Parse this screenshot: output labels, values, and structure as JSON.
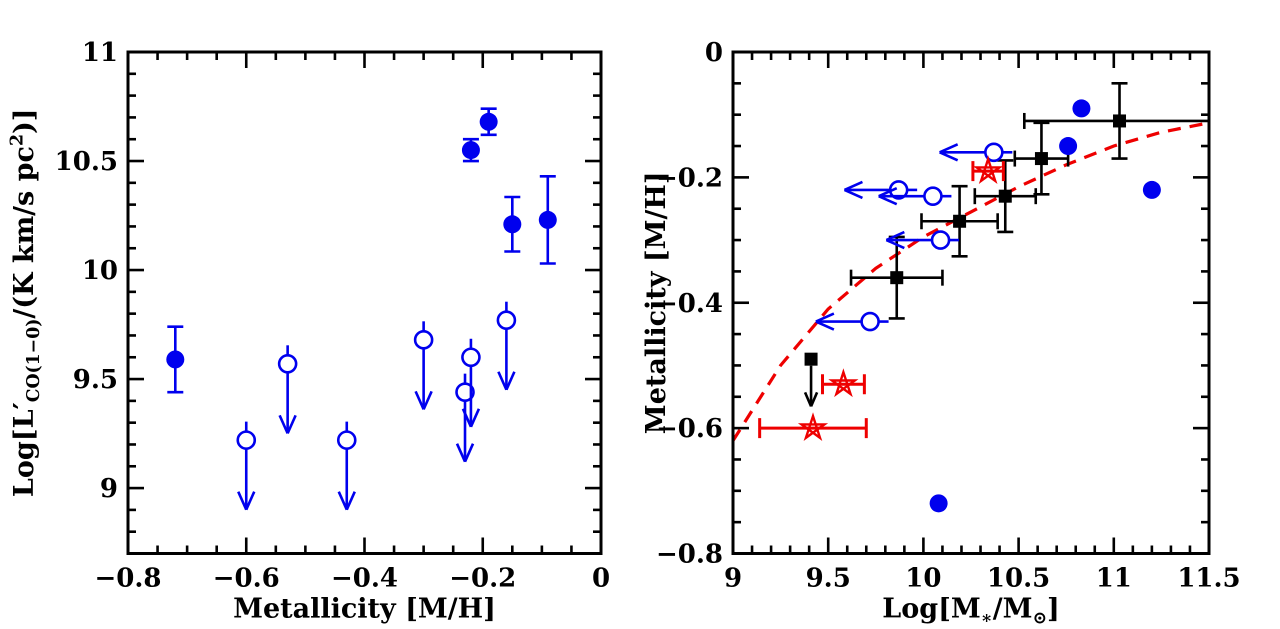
{
  "figure": {
    "background": "#ffffff",
    "colors": {
      "blue": "#0000ee",
      "red": "#ee0000",
      "black": "#000000"
    }
  },
  "chart_data": [
    {
      "id": "co-luminosity-vs-metallicity",
      "type": "scatter",
      "title": "",
      "xlabel": "Metallicity [M/H]",
      "ylabel_parts": [
        {
          "t": "Log[L′",
          "s": "n"
        },
        {
          "t": "CO(1−0)",
          "s": "sub"
        },
        {
          "t": "/(K km/s pc",
          "s": "n"
        },
        {
          "t": "2",
          "s": "sup"
        },
        {
          "t": ")]",
          "s": "n"
        }
      ],
      "xlim": [
        -0.8,
        0
      ],
      "ylim": [
        8.7,
        11
      ],
      "grid": false,
      "legend": null,
      "x_ticks": [
        {
          "v": -0.8,
          "label": "−0.8"
        },
        {
          "v": -0.6,
          "label": "−0.6"
        },
        {
          "v": -0.4,
          "label": "−0.4"
        },
        {
          "v": -0.2,
          "label": "−0.2"
        },
        {
          "v": 0,
          "label": "0"
        }
      ],
      "x_minor_step": 0.05,
      "y_ticks": [
        {
          "v": 9,
          "label": "9"
        },
        {
          "v": 9.5,
          "label": "9.5"
        },
        {
          "v": 10,
          "label": "10"
        },
        {
          "v": 10.5,
          "label": "10.5"
        },
        {
          "v": 11,
          "label": "11"
        }
      ],
      "y_minor_step": 0.1,
      "series": [
        {
          "name": "co-detections",
          "marker": "circle-filled",
          "color": "blue",
          "points": [
            {
              "x": -0.72,
              "y": 9.59,
              "yerr": 0.15
            },
            {
              "x": -0.22,
              "y": 10.55,
              "yerr": 0.05
            },
            {
              "x": -0.19,
              "y": 10.68,
              "yerr": 0.06
            },
            {
              "x": -0.15,
              "y": 10.21,
              "yerr": 0.125
            },
            {
              "x": -0.09,
              "y": 10.23,
              "yerr": 0.2
            }
          ]
        },
        {
          "name": "co-upper-limits",
          "marker": "circle-open-down-arrow",
          "color": "blue",
          "arrow_len": 0.28,
          "points": [
            {
              "x": -0.6,
              "y": 9.22
            },
            {
              "x": -0.53,
              "y": 9.57
            },
            {
              "x": -0.43,
              "y": 9.22
            },
            {
              "x": -0.3,
              "y": 9.68
            },
            {
              "x": -0.23,
              "y": 9.44
            },
            {
              "x": -0.22,
              "y": 9.6
            },
            {
              "x": -0.16,
              "y": 9.77
            }
          ]
        }
      ]
    },
    {
      "id": "mass-metallicity",
      "type": "scatter",
      "title": "",
      "xlabel_parts": [
        {
          "t": "Log[M",
          "s": "n"
        },
        {
          "t": "∗",
          "s": "sub"
        },
        {
          "t": "/M",
          "s": "n"
        },
        {
          "t": "⊙",
          "s": "sub"
        },
        {
          "t": "]",
          "s": "n"
        }
      ],
      "ylabel": "Metallicity [M/H]",
      "xlim": [
        9,
        11.5
      ],
      "ylim": [
        -0.8,
        0
      ],
      "grid": false,
      "legend": null,
      "x_ticks": [
        {
          "v": 9,
          "label": "9"
        },
        {
          "v": 9.5,
          "label": "9.5"
        },
        {
          "v": 10,
          "label": "10"
        },
        {
          "v": 10.5,
          "label": "10.5"
        },
        {
          "v": 11,
          "label": "11"
        },
        {
          "v": 11.5,
          "label": "11.5"
        }
      ],
      "x_minor_step": 0.1,
      "y_ticks": [
        {
          "v": 0,
          "label": "0"
        },
        {
          "v": -0.2,
          "label": "−0.2"
        },
        {
          "v": -0.4,
          "label": "−0.4"
        },
        {
          "v": -0.6,
          "label": "−0.6"
        },
        {
          "v": -0.8,
          "label": "−0.8"
        }
      ],
      "y_minor_step": 0.05,
      "series": [
        {
          "name": "model-curve",
          "marker": "dashed-line",
          "color": "red",
          "x": [
            9.0,
            9.25,
            9.5,
            9.75,
            10.0,
            10.25,
            10.5,
            10.75,
            11.0,
            11.25,
            11.5
          ],
          "y": [
            -0.62,
            -0.5,
            -0.41,
            -0.345,
            -0.295,
            -0.255,
            -0.215,
            -0.18,
            -0.15,
            -0.128,
            -0.113
          ]
        },
        {
          "name": "binned-squares",
          "marker": "square-filled",
          "color": "black",
          "points": [
            {
              "x": 9.86,
              "y": -0.36,
              "xerr": 0.24,
              "yerr": 0.065
            },
            {
              "x": 10.19,
              "y": -0.27,
              "xerr": 0.2,
              "yerr": 0.056
            },
            {
              "x": 10.43,
              "y": -0.23,
              "xerr": 0.16,
              "yerr": 0.057
            },
            {
              "x": 10.62,
              "y": -0.17,
              "xerr": 0.14,
              "yerr": 0.057
            },
            {
              "x": 11.03,
              "y": -0.11,
              "xerr": 0.5,
              "yerr": 0.06
            }
          ]
        },
        {
          "name": "binned-square-limit",
          "marker": "square-down-arrow",
          "color": "black",
          "arrow_len": 0.065,
          "points": [
            {
              "x": 9.41,
              "y": -0.49
            }
          ]
        },
        {
          "name": "blue-detections",
          "marker": "circle-filled",
          "color": "blue",
          "points": [
            {
              "x": 10.83,
              "y": -0.09
            },
            {
              "x": 10.76,
              "y": -0.15
            },
            {
              "x": 11.2,
              "y": -0.22
            },
            {
              "x": 10.08,
              "y": -0.72
            }
          ]
        },
        {
          "name": "mass-upper-limits",
          "marker": "circle-open-left-arrow",
          "color": "blue",
          "arrow_len": 0.24,
          "points": [
            {
              "x": 10.37,
              "y": -0.16
            },
            {
              "x": 9.87,
              "y": -0.22
            },
            {
              "x": 10.05,
              "y": -0.23
            },
            {
              "x": 10.09,
              "y": -0.3
            },
            {
              "x": 9.72,
              "y": -0.43
            }
          ]
        },
        {
          "name": "red-stars",
          "marker": "star-open",
          "color": "red",
          "points": [
            {
              "x": 10.34,
              "y": -0.19,
              "xerr": 0.08
            },
            {
              "x": 9.58,
              "y": -0.53,
              "xerr": 0.11
            },
            {
              "x": 9.42,
              "y": -0.6,
              "xerr": 0.28
            }
          ]
        }
      ]
    }
  ]
}
